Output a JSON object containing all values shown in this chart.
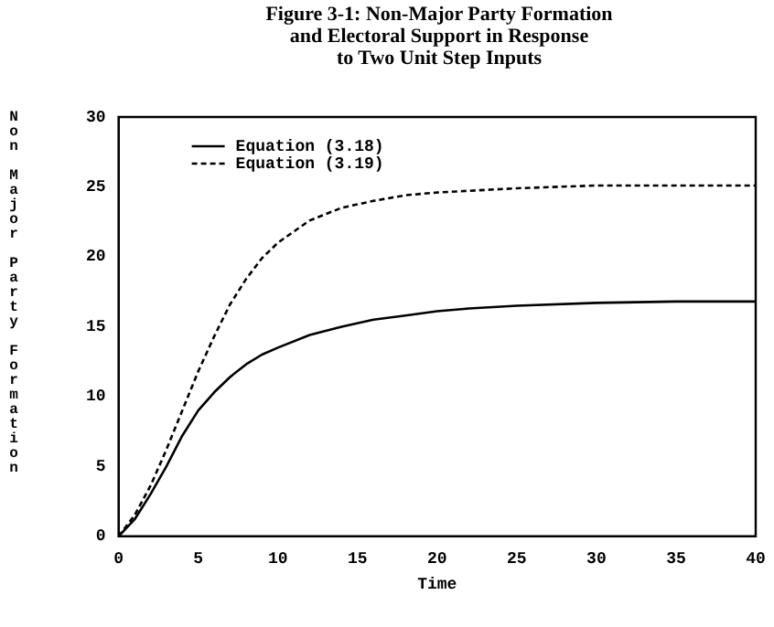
{
  "chart_data": {
    "type": "line",
    "title": "Figure 3-1: Non-Major Party Formation\nand Electoral Support in Response\nto Two Unit Step Inputs",
    "xlabel": "Time",
    "ylabel": "Non Major Party Formation",
    "xlim": [
      0,
      40
    ],
    "xticks": [
      0,
      5,
      10,
      15,
      20,
      25,
      30,
      35,
      40
    ],
    "ylim": [
      0,
      30
    ],
    "yticks": [
      0,
      5,
      10,
      15,
      20,
      25,
      30
    ],
    "grid": false,
    "legend": "top left",
    "marker": "none",
    "series": [
      {
        "name": "Equation (3.18)",
        "color": "#000000",
        "line_style": "solid",
        "x": [
          0,
          1,
          2,
          3,
          4,
          5,
          6,
          7,
          8,
          9,
          10,
          12,
          14,
          16,
          18,
          20,
          22,
          25,
          30,
          35,
          40
        ],
        "values": [
          0,
          1.2,
          3.0,
          5.0,
          7.2,
          9.0,
          10.3,
          11.4,
          12.3,
          13.0,
          13.5,
          14.4,
          15.0,
          15.5,
          15.8,
          16.1,
          16.3,
          16.5,
          16.7,
          16.8,
          16.8
        ]
      },
      {
        "name": "Equation (3.19)",
        "color": "#000000",
        "line_style": "dashed",
        "x": [
          0,
          1,
          2,
          3,
          4,
          5,
          6,
          7,
          8,
          9,
          10,
          12,
          14,
          16,
          18,
          20,
          25,
          30,
          40
        ],
        "values": [
          0,
          1.5,
          3.6,
          6.2,
          9.0,
          11.8,
          14.3,
          16.6,
          18.4,
          19.9,
          21.0,
          22.6,
          23.5,
          24.0,
          24.4,
          24.6,
          24.9,
          25.1,
          25.1
        ]
      }
    ]
  }
}
